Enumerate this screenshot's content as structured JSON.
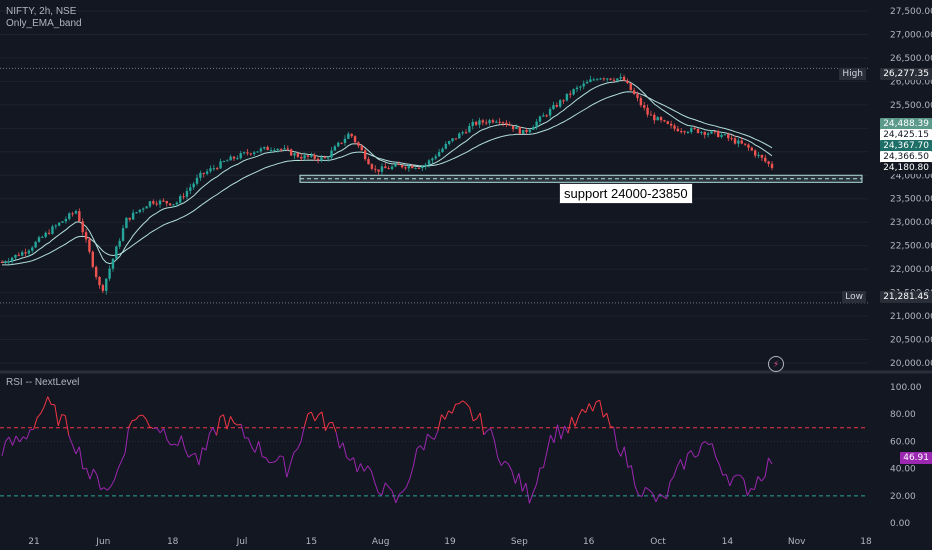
{
  "header": {
    "symbol_line": "NIFTY, 2h, NSE",
    "indicator": "Only_EMA_band"
  },
  "rsi_panel": {
    "title": "RSI -- NextLevel",
    "current_value": "46.91",
    "upper_band": 70,
    "lower_band": 20
  },
  "annotations": {
    "support_label": "support 24000-23850",
    "support_zone": [
      23850,
      24000
    ],
    "high_label": "High",
    "high_value": "26,277.35",
    "low_label": "Low",
    "low_value": "21,281.45"
  },
  "price_tags": [
    {
      "value": "24,488.39",
      "bg": "#5b9a8b",
      "fg": "#ffffff",
      "price": 24488.39
    },
    {
      "value": "24,425.15",
      "bg": "#ffffff",
      "fg": "#131722",
      "price": 24425.15
    },
    {
      "value": "24,367.70",
      "bg": "#1e6f68",
      "fg": "#ffffff",
      "price": 24367.7
    },
    {
      "value": "24,366.50",
      "bg": "#ffffff",
      "fg": "#131722",
      "price": 24366.5
    },
    {
      "value": "24,180.80",
      "bg": "#131722",
      "fg": "#ffffff",
      "price": 24180.8
    }
  ],
  "colors": {
    "background": "#131722",
    "up": "#26a69a",
    "down": "#ef5350",
    "ema_band": "#b2dfdb",
    "rsi_line_high": "#f23645",
    "rsi_line": "#9c27b0",
    "rsi_upper": "#f23645",
    "rsi_lower": "#26a69a",
    "grid": "#1e222d"
  },
  "chart_data": [
    {
      "type": "candlestick",
      "title": "NIFTY, 2h, NSE",
      "price_axis_ticks": [
        "27,500.00",
        "27,000.00",
        "26,500.00",
        "26,000.00",
        "25,500.00",
        "25,000.00",
        "24,500.00",
        "24,000.00",
        "23,500.00",
        "23,000.00",
        "22,500.00",
        "22,000.00",
        "21,500.00",
        "21,000.00",
        "20,500.00",
        "20,000.00"
      ],
      "ylim": [
        19850,
        27650
      ],
      "time_axis_ticks": [
        "21",
        "Jun",
        "18",
        "Jul",
        "15",
        "Aug",
        "19",
        "Sep",
        "16",
        "Oct",
        "14",
        "Nov",
        "18"
      ],
      "approx_close_path": {
        "dates": [
          "May 17",
          "May 21",
          "May 28",
          "Jun 1",
          "Jun 4",
          "Jun 7",
          "Jun 14",
          "Jun 21",
          "Jun 28",
          "Jul 5",
          "Jul 12",
          "Jul 16",
          "Jul 19",
          "Jul 25",
          "Jul 31",
          "Aug 5",
          "Aug 10",
          "Aug 14",
          "Aug 21",
          "Aug 28",
          "Sep 4",
          "Sep 10",
          "Sep 13",
          "Sep 20",
          "Sep 26",
          "Sep 30",
          "Oct 3",
          "Oct 8",
          "Oct 14",
          "Oct 18",
          "Oct 22",
          "Oct 25"
        ],
        "values": [
          22150,
          22400,
          22850,
          23250,
          21500,
          23050,
          23450,
          23400,
          24000,
          24300,
          24500,
          24600,
          24400,
          24350,
          24900,
          24100,
          24200,
          24200,
          24700,
          25100,
          25200,
          24900,
          25350,
          25800,
          26100,
          26050,
          25300,
          25000,
          24950,
          24850,
          24600,
          24180
        ]
      },
      "high": 26277.35,
      "low": 21281.45
    },
    {
      "type": "line",
      "title": "RSI -- NextLevel",
      "ylim": [
        -5,
        105
      ],
      "y_ticks": [
        "100.00",
        "80.00",
        "60.00",
        "40.00",
        "20.00",
        "0.00"
      ],
      "bands": [
        70,
        20
      ],
      "approx_series": {
        "name": "RSI",
        "values": [
          55,
          62,
          88,
          70,
          35,
          25,
          80,
          72,
          60,
          45,
          78,
          65,
          50,
          40,
          82,
          70,
          45,
          30,
          15,
          55,
          75,
          85,
          70,
          40,
          20,
          65,
          72,
          88,
          60,
          25,
          15,
          45,
          60,
          35,
          25,
          46.91
        ]
      }
    }
  ]
}
